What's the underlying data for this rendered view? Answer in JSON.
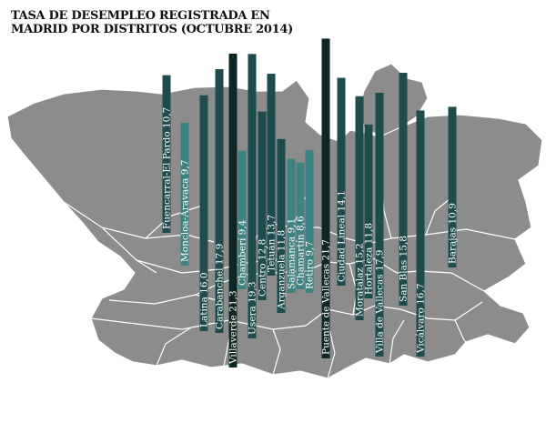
{
  "chart_data": {
    "type": "bar",
    "title": "TASA DE DESEMPLEO REGISTRADA EN MADRID POR DISTRITOS (OCTUBRE 2014)",
    "ylabel": "",
    "xlabel": "",
    "ylim": [
      0,
      22
    ],
    "grid": false,
    "legend": "none",
    "categories": [
      "Fuencarral-El Pardo",
      "Moncloa-Aravaca",
      "Latina",
      "Carabanchel",
      "Villaverde",
      "Chamberí",
      "Usera",
      "Centro",
      "Tetuán",
      "Arganzuela",
      "Salamanca",
      "Chamartín",
      "Retiro",
      "Puente de Vallecas",
      "Ciudad Lineal",
      "Moratalaz",
      "Hortaleza",
      "Villa de Vallecas",
      "San Blas",
      "Vicálvaro",
      "Barajas"
    ],
    "values": [
      10.7,
      9.7,
      16.0,
      17.9,
      21.3,
      9.4,
      19.3,
      12.8,
      13.7,
      11.8,
      9.1,
      8.6,
      9.7,
      21.7,
      14.1,
      15.2,
      11.8,
      17.9,
      15.8,
      16.7,
      10.9
    ],
    "labels": [
      "Fuencarral-El Pardo 10,7",
      "Moncloa-Aravaca 9,7",
      "Latina 16,0",
      "Carabanchel 17,9",
      "Villaverde 21,3",
      "Chamberí 9,4",
      "Usera 19,3",
      "Centro 12,8",
      "Tetuán 13,7",
      "Arganzuela 11,8",
      "Salamanca 9,1",
      "Chamartín 8,6",
      "Retiro 9,7",
      "Puente de Vallecas 21,7",
      "Ciudad Lineal 14,1",
      "Moratalaz 15,2",
      "Hortaleza 11,8",
      "Villa de Vallecas 17,9",
      "San Blas 15,8",
      "Vicálvaro 16,7",
      "Barajas 10,9"
    ],
    "colors": {
      "low": "#3f8282",
      "mid": "#1e4b4b",
      "high": "#0f2626",
      "map_fill": "#8c8c8c",
      "map_stroke": "#ffffff"
    }
  }
}
